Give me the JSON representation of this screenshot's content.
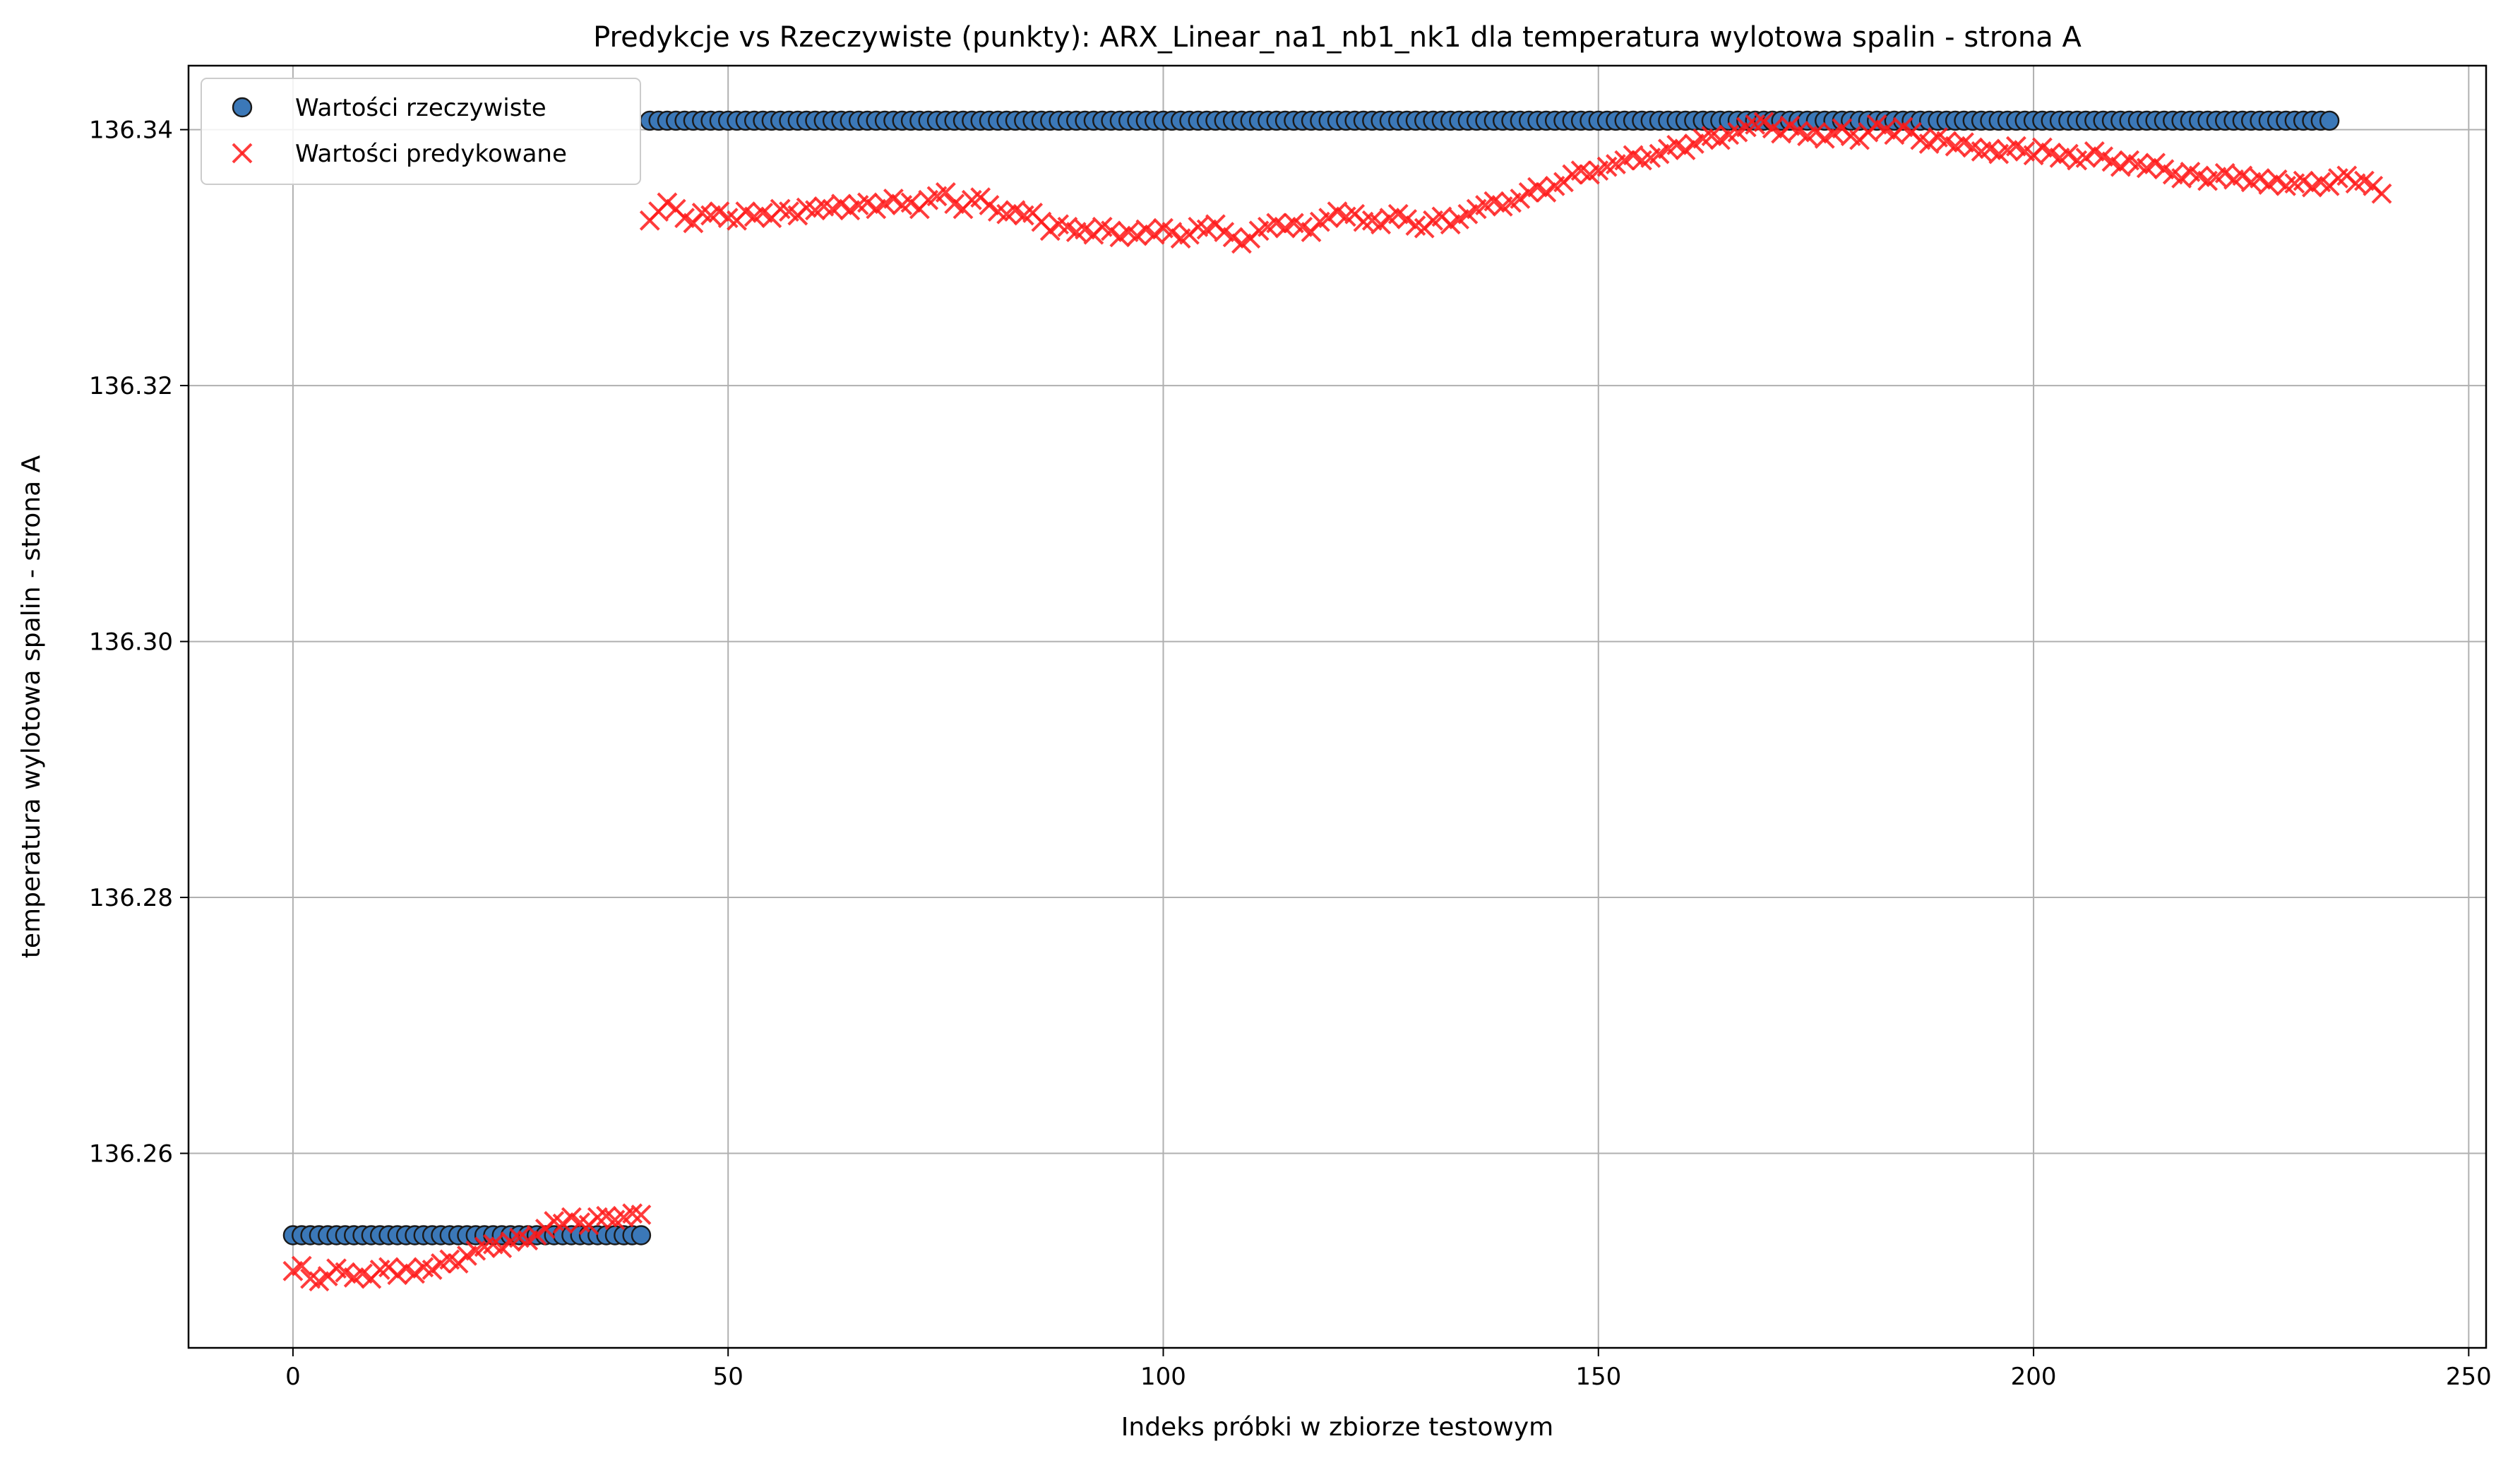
{
  "chart_data": {
    "type": "scatter",
    "title": "Predykcje vs Rzeczywiste (punkty): ARX_Linear_na1_nb1_nk1 dla temperatura wylotowa spalin - strona A",
    "xlabel": "Indeks próbki w zbiorze testowym",
    "ylabel": "temperatura wylotowa spalin - strona A",
    "xlim": [
      -12,
      252
    ],
    "ylim": [
      136.2448,
      136.345
    ],
    "x_ticks": [
      0,
      50,
      100,
      150,
      200,
      250
    ],
    "x_tick_labels": [
      "0",
      "50",
      "100",
      "150",
      "200",
      "250"
    ],
    "y_ticks": [
      136.26,
      136.28,
      136.3,
      136.32,
      136.34
    ],
    "y_tick_labels": [
      "136.26",
      "136.28",
      "136.30",
      "136.32",
      "136.34"
    ],
    "grid": true,
    "legend_position": "top-left",
    "series": [
      {
        "name": "Wartości rzeczywiste",
        "marker": "circle",
        "color": "#3b78b8",
        "edge_color": "#1a1a1a",
        "x_start": 0,
        "x_step": 1,
        "values": [
          136.2536,
          136.2536,
          136.2536,
          136.2536,
          136.2536,
          136.2536,
          136.2536,
          136.2536,
          136.2536,
          136.2536,
          136.2536,
          136.2536,
          136.2536,
          136.2536,
          136.2536,
          136.2536,
          136.2536,
          136.2536,
          136.2536,
          136.2536,
          136.2536,
          136.2536,
          136.2536,
          136.2536,
          136.2536,
          136.2536,
          136.2536,
          136.2536,
          136.2536,
          136.2536,
          136.2536,
          136.2536,
          136.2536,
          136.2536,
          136.2536,
          136.2536,
          136.2536,
          136.2536,
          136.2536,
          136.2536,
          136.2536,
          136.3407,
          136.3407,
          136.3407,
          136.3407,
          136.3407,
          136.3407,
          136.3407,
          136.3407,
          136.3407,
          136.3407,
          136.3407,
          136.3407,
          136.3407,
          136.3407,
          136.3407,
          136.3407,
          136.3407,
          136.3407,
          136.3407,
          136.3407,
          136.3407,
          136.3407,
          136.3407,
          136.3407,
          136.3407,
          136.3407,
          136.3407,
          136.3407,
          136.3407,
          136.3407,
          136.3407,
          136.3407,
          136.3407,
          136.3407,
          136.3407,
          136.3407,
          136.3407,
          136.3407,
          136.3407,
          136.3407,
          136.3407,
          136.3407,
          136.3407,
          136.3407,
          136.3407,
          136.3407,
          136.3407,
          136.3407,
          136.3407,
          136.3407,
          136.3407,
          136.3407,
          136.3407,
          136.3407,
          136.3407,
          136.3407,
          136.3407,
          136.3407,
          136.3407,
          136.3407,
          136.3407,
          136.3407,
          136.3407,
          136.3407,
          136.3407,
          136.3407,
          136.3407,
          136.3407,
          136.3407,
          136.3407,
          136.3407,
          136.3407,
          136.3407,
          136.3407,
          136.3407,
          136.3407,
          136.3407,
          136.3407,
          136.3407,
          136.3407,
          136.3407,
          136.3407,
          136.3407,
          136.3407,
          136.3407,
          136.3407,
          136.3407,
          136.3407,
          136.3407,
          136.3407,
          136.3407,
          136.3407,
          136.3407,
          136.3407,
          136.3407,
          136.3407,
          136.3407,
          136.3407,
          136.3407,
          136.3407,
          136.3407,
          136.3407,
          136.3407,
          136.3407,
          136.3407,
          136.3407,
          136.3407,
          136.3407,
          136.3407,
          136.3407,
          136.3407,
          136.3407,
          136.3407,
          136.3407,
          136.3407,
          136.3407,
          136.3407,
          136.3407,
          136.3407,
          136.3407,
          136.3407,
          136.3407,
          136.3407,
          136.3407,
          136.3407,
          136.3407,
          136.3407,
          136.3407,
          136.3407,
          136.3407,
          136.3407,
          136.3407,
          136.3407,
          136.3407,
          136.3407,
          136.3407,
          136.3407,
          136.3407,
          136.3407,
          136.3407,
          136.3407,
          136.3407,
          136.3407,
          136.3407,
          136.3407,
          136.3407,
          136.3407,
          136.3407,
          136.3407,
          136.3407,
          136.3407,
          136.3407,
          136.3407,
          136.3407,
          136.3407,
          136.3407,
          136.3407,
          136.3407,
          136.3407,
          136.3407,
          136.3407,
          136.3407,
          136.3407,
          136.3407,
          136.3407,
          136.3407,
          136.3407,
          136.3407,
          136.3407,
          136.3407,
          136.3407,
          136.3407,
          136.3407,
          136.3407,
          136.3407,
          136.3407,
          136.3407,
          136.3407,
          136.3407,
          136.3407,
          136.3407,
          136.3407,
          136.3407,
          136.3407,
          136.3407,
          136.3407,
          136.3407,
          136.3407,
          136.3407,
          136.3407,
          136.3407,
          136.3407,
          136.3407,
          136.3407
        ]
      },
      {
        "name": "Wartości predykowane",
        "marker": "x",
        "color": "#ff1a1a",
        "x_start": 0,
        "x_step": 1,
        "values": [
          136.2508,
          136.2512,
          136.2502,
          136.25,
          136.2504,
          136.251,
          136.2507,
          136.2503,
          136.2506,
          136.2502,
          136.2509,
          136.2511,
          136.2505,
          136.251,
          136.2506,
          136.2511,
          136.2509,
          136.2514,
          136.2517,
          136.2514,
          136.252,
          136.2524,
          136.2527,
          136.2529,
          136.2526,
          136.2531,
          136.2534,
          136.2532,
          136.2536,
          136.2541,
          136.2547,
          136.2545,
          136.255,
          136.2546,
          136.2544,
          136.255,
          136.2551,
          136.2548,
          136.255,
          136.2553,
          136.2552,
          136.3329,
          136.3336,
          136.3343,
          136.3338,
          136.3331,
          136.3327,
          136.3335,
          136.3333,
          136.3336,
          136.3331,
          136.3329,
          136.3336,
          136.3332,
          136.3335,
          136.3331,
          136.3338,
          136.3336,
          136.3333,
          136.3339,
          136.3337,
          136.334,
          136.3338,
          136.3342,
          136.3337,
          136.3341,
          136.3343,
          136.3338,
          136.3342,
          136.3346,
          136.3341,
          136.3343,
          136.3338,
          136.3345,
          136.3348,
          136.3351,
          136.3342,
          136.3338,
          136.3345,
          136.3347,
          136.3341,
          136.3336,
          136.3334,
          136.3337,
          136.3333,
          136.3335,
          136.3328,
          136.3321,
          136.3326,
          136.3324,
          136.332,
          136.3322,
          136.3318,
          136.3324,
          136.3321,
          136.3316,
          136.332,
          136.3317,
          136.3322,
          136.3318,
          136.3323,
          136.332,
          136.3315,
          136.3318,
          136.3324,
          136.3322,
          136.3326,
          136.332,
          136.3316,
          136.3311,
          136.3315,
          136.3321,
          136.3324,
          136.3327,
          136.3323,
          136.3327,
          136.3324,
          136.332,
          136.3328,
          136.3331,
          136.3336,
          136.3332,
          136.3334,
          136.3328,
          136.3329,
          136.3326,
          136.3331,
          136.3334,
          136.333,
          136.3325,
          136.3323,
          136.3329,
          136.3332,
          136.3326,
          136.333,
          136.3334,
          136.3338,
          136.3341,
          136.3344,
          136.334,
          136.3343,
          136.3346,
          136.3351,
          136.3355,
          136.3351,
          136.3356,
          136.3359,
          136.3365,
          136.3368,
          136.3365,
          136.3368,
          136.3371,
          136.3373,
          136.3376,
          136.338,
          136.3376,
          136.3378,
          136.3381,
          136.3385,
          136.3388,
          136.3384,
          136.3389,
          136.3393,
          136.3395,
          136.3392,
          136.3396,
          136.3398,
          136.3402,
          136.3404,
          136.3406,
          136.3401,
          136.3397,
          136.3403,
          136.3399,
          136.3395,
          136.3398,
          136.3393,
          136.3397,
          136.3401,
          136.3395,
          136.3392,
          136.3398,
          136.3404,
          136.34,
          136.3396,
          136.3402,
          136.3398,
          136.3392,
          136.3389,
          136.3394,
          136.3391,
          136.3387,
          136.339,
          136.3386,
          136.3383,
          136.3385,
          136.3381,
          136.3384,
          136.3387,
          136.3383,
          136.338,
          136.3386,
          136.3382,
          136.3378,
          136.3381,
          136.3376,
          136.3378,
          136.3383,
          136.3379,
          136.3375,
          136.3371,
          136.3376,
          136.3373,
          136.337,
          136.3374,
          136.3369,
          136.3365,
          136.3362,
          136.3367,
          136.3364,
          136.336,
          136.3363,
          136.3366,
          136.3361,
          136.3364,
          136.3359,
          136.3362,
          136.3357,
          136.3361,
          136.3356,
          136.3358,
          136.336,
          136.3355,
          136.3359,
          136.3356,
          136.3362,
          136.3364,
          136.3358,
          136.336,
          136.3356,
          136.335
        ]
      }
    ]
  }
}
